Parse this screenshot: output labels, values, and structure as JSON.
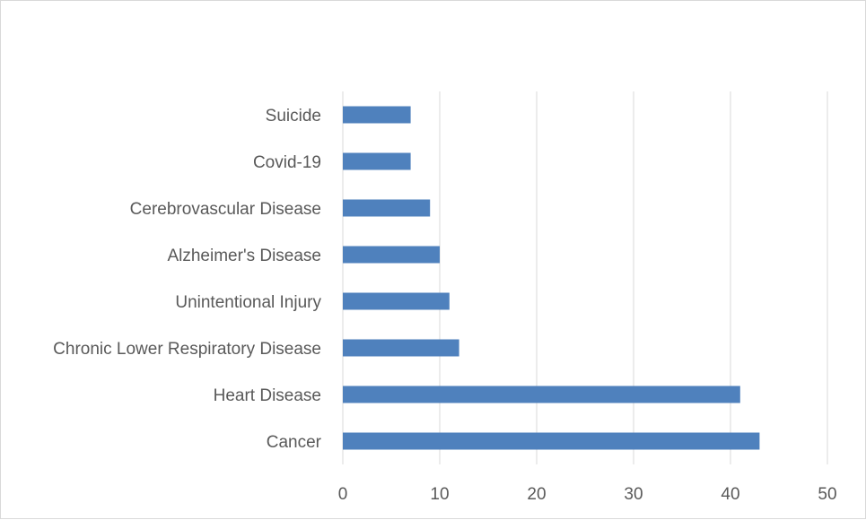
{
  "chart_data": {
    "type": "bar",
    "orientation": "horizontal",
    "title": "",
    "xlabel": "",
    "ylabel": "",
    "categories": [
      "Suicide",
      "Covid-19",
      "Cerebrovascular Disease",
      "Alzheimer's Disease",
      "Unintentional Injury",
      "Chronic Lower Respiratory Disease",
      "Heart Disease",
      "Cancer"
    ],
    "values": [
      7,
      7,
      9,
      10,
      11,
      12,
      41,
      43
    ],
    "xlim": [
      0,
      50
    ],
    "xticks": [
      "0",
      "10",
      "20",
      "30",
      "40",
      "50"
    ],
    "grid": true,
    "legend": "none",
    "bar_color": "#4f81bd"
  }
}
